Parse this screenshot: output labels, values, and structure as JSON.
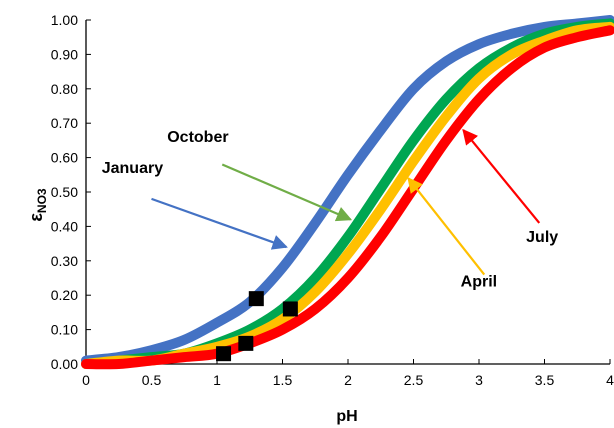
{
  "chart_data": {
    "type": "line",
    "xlabel": "pH",
    "ylabel_main": "ε",
    "ylabel_sub": "NO3",
    "xlim": [
      0,
      4
    ],
    "ylim": [
      0,
      1
    ],
    "x_ticks": [
      0,
      0.5,
      1,
      1.5,
      2,
      2.5,
      3,
      3.5,
      4
    ],
    "x_tick_labels": [
      "0",
      "0.5",
      "1",
      "1.5",
      "2",
      "2.5",
      "3",
      "3.5",
      "4"
    ],
    "y_ticks": [
      0,
      0.1,
      0.2,
      0.3,
      0.4,
      0.5,
      0.6,
      0.7,
      0.8,
      0.9,
      1.0
    ],
    "y_tick_labels": [
      "0.00",
      "0.10",
      "0.20",
      "0.30",
      "0.40",
      "0.50",
      "0.60",
      "0.70",
      "0.80",
      "0.90",
      "1.00"
    ],
    "grid": false,
    "legend": "none",
    "series": [
      {
        "name": "January",
        "color": "#4472C4",
        "x": [
          0,
          0.25,
          0.5,
          0.75,
          1,
          1.25,
          1.5,
          1.75,
          2,
          2.25,
          2.5,
          2.75,
          3,
          3.25,
          3.5,
          3.75,
          4
        ],
        "y": [
          0.01,
          0.02,
          0.04,
          0.07,
          0.12,
          0.18,
          0.28,
          0.41,
          0.55,
          0.68,
          0.8,
          0.88,
          0.93,
          0.96,
          0.98,
          0.99,
          1.0
        ]
      },
      {
        "name": "October",
        "color": "#00A651",
        "x": [
          0,
          0.25,
          0.5,
          0.75,
          1,
          1.25,
          1.5,
          1.75,
          2,
          2.25,
          2.5,
          2.75,
          3,
          3.25,
          3.5,
          3.75,
          4
        ],
        "y": [
          0.0,
          0.01,
          0.02,
          0.03,
          0.06,
          0.1,
          0.16,
          0.25,
          0.37,
          0.51,
          0.65,
          0.77,
          0.86,
          0.92,
          0.96,
          0.98,
          0.99
        ]
      },
      {
        "name": "April",
        "color": "#FFC000",
        "x": [
          0,
          0.25,
          0.5,
          0.75,
          1,
          1.25,
          1.5,
          1.75,
          2,
          2.25,
          2.5,
          2.75,
          3,
          3.25,
          3.5,
          3.75,
          4
        ],
        "y": [
          0.0,
          0.01,
          0.01,
          0.03,
          0.05,
          0.08,
          0.13,
          0.21,
          0.32,
          0.45,
          0.59,
          0.72,
          0.83,
          0.9,
          0.94,
          0.97,
          0.98
        ]
      },
      {
        "name": "July",
        "color": "#FF0000",
        "x": [
          0,
          0.25,
          0.5,
          0.75,
          1,
          1.25,
          1.5,
          1.75,
          2,
          2.25,
          2.5,
          2.75,
          3,
          3.25,
          3.5,
          3.75,
          4
        ],
        "y": [
          0.0,
          0.0,
          0.01,
          0.02,
          0.03,
          0.06,
          0.1,
          0.16,
          0.25,
          0.37,
          0.51,
          0.65,
          0.77,
          0.86,
          0.92,
          0.95,
          0.97
        ]
      }
    ],
    "markers": {
      "color": "#000000",
      "points": [
        {
          "x": 1.05,
          "y": 0.03
        },
        {
          "x": 1.22,
          "y": 0.06
        },
        {
          "x": 1.3,
          "y": 0.19
        },
        {
          "x": 1.56,
          "y": 0.16
        }
      ]
    },
    "annotations": [
      {
        "label": "January",
        "color": "#4472C4",
        "text_x": 0.12,
        "text_y": 0.555,
        "arrow_from": [
          0.5,
          0.48
        ],
        "arrow_to": [
          1.53,
          0.34
        ]
      },
      {
        "label": "October",
        "color": "#70AD47",
        "text_x": 0.62,
        "text_y": 0.645,
        "arrow_from": [
          1.04,
          0.58
        ],
        "arrow_to": [
          2.02,
          0.42
        ]
      },
      {
        "label": "April",
        "color": "#FFC000",
        "text_x": 2.86,
        "text_y": 0.225,
        "arrow_from": [
          3.04,
          0.26
        ],
        "arrow_to": [
          2.46,
          0.54
        ]
      },
      {
        "label": "July",
        "color": "#FF0000",
        "text_x": 3.36,
        "text_y": 0.355,
        "arrow_from": [
          3.46,
          0.41
        ],
        "arrow_to": [
          2.88,
          0.68
        ]
      }
    ]
  }
}
